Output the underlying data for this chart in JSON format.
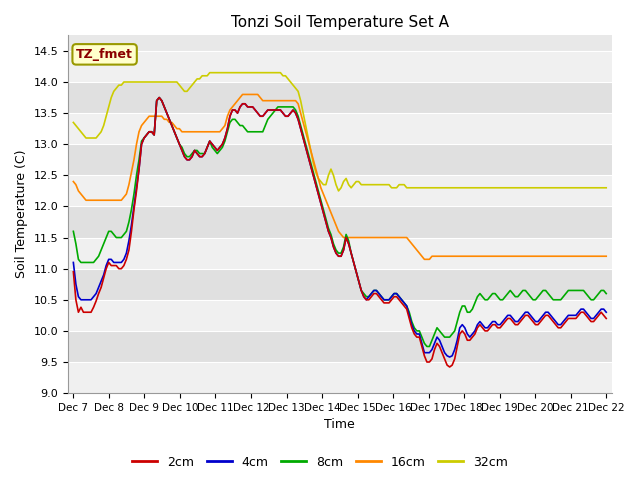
{
  "title": "Tonzi Soil Temperature Set A",
  "xlabel": "Time",
  "ylabel": "Soil Temperature (C)",
  "ylim": [
    9.0,
    14.75
  ],
  "yticks": [
    9.0,
    9.5,
    10.0,
    10.5,
    11.0,
    11.5,
    12.0,
    12.5,
    13.0,
    13.5,
    14.0,
    14.5
  ],
  "x_labels": [
    "Dec 7",
    "Dec 8",
    "Dec 9",
    "Dec 10",
    "Dec 11",
    "Dec 12",
    "Dec 13",
    "Dec 14",
    "Dec 15",
    "Dec 16",
    "Dec 17",
    "Dec 18",
    "Dec 19",
    "Dec 20",
    "Dec 21",
    "Dec 22"
  ],
  "colors": {
    "2cm": "#cc0000",
    "4cm": "#0000cc",
    "8cm": "#00aa00",
    "16cm": "#ff8800",
    "32cm": "#cccc00"
  },
  "bg_light": "#f0f0f0",
  "bg_dark": "#e0e0e0",
  "series": {
    "2cm": [
      10.95,
      10.5,
      10.3,
      10.38,
      10.3,
      10.3,
      10.3,
      10.3,
      10.38,
      10.48,
      10.6,
      10.7,
      10.85,
      11.0,
      11.1,
      11.05,
      11.05,
      11.05,
      11.0,
      11.0,
      11.05,
      11.15,
      11.3,
      11.6,
      11.95,
      12.25,
      12.6,
      13.0,
      13.1,
      13.15,
      13.2,
      13.2,
      13.15,
      13.7,
      13.75,
      13.7,
      13.6,
      13.5,
      13.4,
      13.3,
      13.2,
      13.1,
      13.0,
      12.9,
      12.8,
      12.75,
      12.75,
      12.8,
      12.9,
      12.85,
      12.8,
      12.8,
      12.85,
      12.95,
      13.05,
      13.0,
      12.95,
      12.9,
      12.95,
      13.0,
      13.1,
      13.25,
      13.45,
      13.55,
      13.55,
      13.5,
      13.6,
      13.65,
      13.65,
      13.6,
      13.6,
      13.6,
      13.55,
      13.5,
      13.45,
      13.45,
      13.5,
      13.55,
      13.55,
      13.55,
      13.55,
      13.55,
      13.55,
      13.5,
      13.45,
      13.45,
      13.5,
      13.55,
      13.5,
      13.4,
      13.25,
      13.1,
      12.95,
      12.8,
      12.65,
      12.5,
      12.35,
      12.2,
      12.05,
      11.9,
      11.75,
      11.6,
      11.5,
      11.35,
      11.25,
      11.2,
      11.2,
      11.3,
      11.5,
      11.4,
      11.25,
      11.1,
      10.95,
      10.8,
      10.65,
      10.55,
      10.5,
      10.5,
      10.55,
      10.6,
      10.6,
      10.55,
      10.5,
      10.45,
      10.45,
      10.45,
      10.5,
      10.55,
      10.55,
      10.5,
      10.45,
      10.4,
      10.35,
      10.2,
      10.05,
      9.95,
      9.9,
      9.9,
      9.75,
      9.6,
      9.5,
      9.5,
      9.55,
      9.7,
      9.8,
      9.75,
      9.65,
      9.55,
      9.45,
      9.42,
      9.45,
      9.55,
      9.75,
      9.95,
      10.0,
      9.95,
      9.85,
      9.85,
      9.9,
      9.95,
      10.05,
      10.1,
      10.05,
      10.0,
      10.0,
      10.05,
      10.1,
      10.1,
      10.05,
      10.05,
      10.1,
      10.15,
      10.2,
      10.2,
      10.15,
      10.1,
      10.1,
      10.15,
      10.2,
      10.25,
      10.25,
      10.2,
      10.15,
      10.1,
      10.1,
      10.15,
      10.2,
      10.25,
      10.25,
      10.2,
      10.15,
      10.1,
      10.05,
      10.05,
      10.1,
      10.15,
      10.2,
      10.2,
      10.2,
      10.2,
      10.25,
      10.3,
      10.3,
      10.25,
      10.2,
      10.15,
      10.15,
      10.2,
      10.25,
      10.3,
      10.25,
      10.2
    ],
    "4cm": [
      11.1,
      10.75,
      10.55,
      10.5,
      10.5,
      10.5,
      10.5,
      10.5,
      10.55,
      10.6,
      10.7,
      10.8,
      10.9,
      11.05,
      11.15,
      11.15,
      11.1,
      11.1,
      11.1,
      11.1,
      11.15,
      11.25,
      11.45,
      11.7,
      12.0,
      12.3,
      12.6,
      13.0,
      13.1,
      13.15,
      13.2,
      13.2,
      13.15,
      13.7,
      13.75,
      13.7,
      13.6,
      13.5,
      13.4,
      13.3,
      13.2,
      13.1,
      13.0,
      12.9,
      12.8,
      12.75,
      12.75,
      12.8,
      12.9,
      12.85,
      12.8,
      12.8,
      12.85,
      12.95,
      13.05,
      13.0,
      12.95,
      12.9,
      12.95,
      13.0,
      13.1,
      13.25,
      13.45,
      13.55,
      13.55,
      13.5,
      13.6,
      13.65,
      13.65,
      13.6,
      13.6,
      13.6,
      13.55,
      13.5,
      13.45,
      13.45,
      13.5,
      13.55,
      13.55,
      13.55,
      13.55,
      13.55,
      13.55,
      13.5,
      13.45,
      13.45,
      13.5,
      13.55,
      13.5,
      13.4,
      13.25,
      13.1,
      12.95,
      12.8,
      12.65,
      12.5,
      12.35,
      12.2,
      12.05,
      11.9,
      11.75,
      11.6,
      11.5,
      11.35,
      11.25,
      11.2,
      11.2,
      11.3,
      11.5,
      11.4,
      11.25,
      11.1,
      10.95,
      10.8,
      10.65,
      10.55,
      10.5,
      10.55,
      10.6,
      10.65,
      10.65,
      10.6,
      10.55,
      10.5,
      10.5,
      10.5,
      10.55,
      10.6,
      10.6,
      10.55,
      10.5,
      10.45,
      10.4,
      10.25,
      10.1,
      10.0,
      9.95,
      9.95,
      9.8,
      9.65,
      9.65,
      9.65,
      9.7,
      9.8,
      9.9,
      9.85,
      9.75,
      9.65,
      9.6,
      9.58,
      9.6,
      9.7,
      9.85,
      10.05,
      10.1,
      10.05,
      9.95,
      9.9,
      9.95,
      10.0,
      10.1,
      10.15,
      10.1,
      10.05,
      10.05,
      10.1,
      10.15,
      10.15,
      10.1,
      10.1,
      10.15,
      10.2,
      10.25,
      10.25,
      10.2,
      10.15,
      10.15,
      10.2,
      10.25,
      10.3,
      10.3,
      10.25,
      10.2,
      10.15,
      10.15,
      10.2,
      10.25,
      10.3,
      10.3,
      10.25,
      10.2,
      10.15,
      10.1,
      10.1,
      10.15,
      10.2,
      10.25,
      10.25,
      10.25,
      10.25,
      10.3,
      10.35,
      10.35,
      10.3,
      10.25,
      10.2,
      10.2,
      10.25,
      10.3,
      10.35,
      10.35,
      10.3
    ],
    "8cm": [
      11.6,
      11.4,
      11.15,
      11.1,
      11.1,
      11.1,
      11.1,
      11.1,
      11.1,
      11.15,
      11.2,
      11.3,
      11.4,
      11.5,
      11.6,
      11.6,
      11.55,
      11.5,
      11.5,
      11.5,
      11.55,
      11.6,
      11.75,
      11.95,
      12.2,
      12.5,
      12.75,
      13.05,
      13.1,
      13.15,
      13.2,
      13.2,
      13.15,
      13.7,
      13.75,
      13.7,
      13.6,
      13.5,
      13.4,
      13.3,
      13.2,
      13.1,
      13.0,
      12.95,
      12.85,
      12.8,
      12.8,
      12.85,
      12.9,
      12.9,
      12.85,
      12.85,
      12.85,
      12.95,
      13.05,
      12.95,
      12.9,
      12.85,
      12.9,
      12.95,
      13.05,
      13.2,
      13.35,
      13.4,
      13.4,
      13.35,
      13.3,
      13.3,
      13.25,
      13.2,
      13.2,
      13.2,
      13.2,
      13.2,
      13.2,
      13.2,
      13.3,
      13.4,
      13.45,
      13.5,
      13.55,
      13.6,
      13.6,
      13.6,
      13.6,
      13.6,
      13.6,
      13.6,
      13.55,
      13.45,
      13.3,
      13.15,
      13.0,
      12.85,
      12.7,
      12.55,
      12.4,
      12.25,
      12.1,
      11.95,
      11.8,
      11.65,
      11.55,
      11.4,
      11.3,
      11.25,
      11.25,
      11.35,
      11.55,
      11.45,
      11.25,
      11.1,
      10.95,
      10.8,
      10.65,
      10.6,
      10.55,
      10.55,
      10.6,
      10.65,
      10.65,
      10.6,
      10.55,
      10.5,
      10.5,
      10.5,
      10.55,
      10.6,
      10.6,
      10.55,
      10.5,
      10.45,
      10.4,
      10.3,
      10.15,
      10.05,
      10.0,
      10.0,
      9.9,
      9.8,
      9.75,
      9.75,
      9.85,
      9.95,
      10.05,
      10.0,
      9.95,
      9.9,
      9.9,
      9.9,
      9.95,
      10.0,
      10.15,
      10.3,
      10.4,
      10.4,
      10.3,
      10.3,
      10.35,
      10.45,
      10.55,
      10.6,
      10.55,
      10.5,
      10.5,
      10.55,
      10.6,
      10.6,
      10.55,
      10.5,
      10.5,
      10.55,
      10.6,
      10.65,
      10.6,
      10.55,
      10.55,
      10.6,
      10.65,
      10.65,
      10.6,
      10.55,
      10.5,
      10.5,
      10.55,
      10.6,
      10.65,
      10.65,
      10.6,
      10.55,
      10.5,
      10.5,
      10.5,
      10.5,
      10.55,
      10.6,
      10.65,
      10.65,
      10.65,
      10.65,
      10.65,
      10.65,
      10.65,
      10.6,
      10.55,
      10.5,
      10.5,
      10.55,
      10.6,
      10.65,
      10.65,
      10.6
    ],
    "16cm": [
      12.4,
      12.35,
      12.25,
      12.2,
      12.15,
      12.1,
      12.1,
      12.1,
      12.1,
      12.1,
      12.1,
      12.1,
      12.1,
      12.1,
      12.1,
      12.1,
      12.1,
      12.1,
      12.1,
      12.1,
      12.15,
      12.2,
      12.35,
      12.55,
      12.75,
      13.0,
      13.2,
      13.3,
      13.35,
      13.4,
      13.45,
      13.45,
      13.45,
      13.45,
      13.45,
      13.45,
      13.4,
      13.4,
      13.35,
      13.35,
      13.3,
      13.25,
      13.25,
      13.2,
      13.2,
      13.2,
      13.2,
      13.2,
      13.2,
      13.2,
      13.2,
      13.2,
      13.2,
      13.2,
      13.2,
      13.2,
      13.2,
      13.2,
      13.2,
      13.25,
      13.3,
      13.45,
      13.55,
      13.6,
      13.65,
      13.7,
      13.75,
      13.8,
      13.8,
      13.8,
      13.8,
      13.8,
      13.8,
      13.8,
      13.75,
      13.7,
      13.7,
      13.7,
      13.7,
      13.7,
      13.7,
      13.7,
      13.7,
      13.7,
      13.7,
      13.7,
      13.7,
      13.7,
      13.7,
      13.65,
      13.5,
      13.35,
      13.2,
      13.05,
      12.9,
      12.75,
      12.6,
      12.45,
      12.3,
      12.2,
      12.1,
      12.0,
      11.9,
      11.8,
      11.7,
      11.6,
      11.55,
      11.5,
      11.5,
      11.5,
      11.5,
      11.5,
      11.5,
      11.5,
      11.5,
      11.5,
      11.5,
      11.5,
      11.5,
      11.5,
      11.5,
      11.5,
      11.5,
      11.5,
      11.5,
      11.5,
      11.5,
      11.5,
      11.5,
      11.5,
      11.5,
      11.5,
      11.5,
      11.45,
      11.4,
      11.35,
      11.3,
      11.25,
      11.2,
      11.15,
      11.15,
      11.15,
      11.2,
      11.2,
      11.2,
      11.2,
      11.2,
      11.2,
      11.2,
      11.2,
      11.2,
      11.2,
      11.2,
      11.2,
      11.2,
      11.2,
      11.2,
      11.2,
      11.2,
      11.2,
      11.2,
      11.2,
      11.2,
      11.2,
      11.2,
      11.2,
      11.2,
      11.2,
      11.2,
      11.2,
      11.2,
      11.2,
      11.2,
      11.2,
      11.2,
      11.2,
      11.2,
      11.2,
      11.2,
      11.2,
      11.2,
      11.2,
      11.2,
      11.2,
      11.2,
      11.2,
      11.2,
      11.2,
      11.2,
      11.2,
      11.2,
      11.2,
      11.2,
      11.2,
      11.2,
      11.2,
      11.2,
      11.2,
      11.2,
      11.2,
      11.2,
      11.2,
      11.2,
      11.2,
      11.2,
      11.2,
      11.2,
      11.2,
      11.2,
      11.2,
      11.2,
      11.2
    ],
    "32cm": [
      13.35,
      13.3,
      13.25,
      13.2,
      13.15,
      13.1,
      13.1,
      13.1,
      13.1,
      13.1,
      13.15,
      13.2,
      13.3,
      13.45,
      13.6,
      13.75,
      13.85,
      13.9,
      13.95,
      13.95,
      14.0,
      14.0,
      14.0,
      14.0,
      14.0,
      14.0,
      14.0,
      14.0,
      14.0,
      14.0,
      14.0,
      14.0,
      14.0,
      14.0,
      14.0,
      14.0,
      14.0,
      14.0,
      14.0,
      14.0,
      14.0,
      14.0,
      13.95,
      13.9,
      13.85,
      13.85,
      13.9,
      13.95,
      14.0,
      14.05,
      14.05,
      14.1,
      14.1,
      14.1,
      14.15,
      14.15,
      14.15,
      14.15,
      14.15,
      14.15,
      14.15,
      14.15,
      14.15,
      14.15,
      14.15,
      14.15,
      14.15,
      14.15,
      14.15,
      14.15,
      14.15,
      14.15,
      14.15,
      14.15,
      14.15,
      14.15,
      14.15,
      14.15,
      14.15,
      14.15,
      14.15,
      14.15,
      14.15,
      14.1,
      14.1,
      14.05,
      14.0,
      13.95,
      13.9,
      13.85,
      13.7,
      13.5,
      13.3,
      13.1,
      12.9,
      12.7,
      12.55,
      12.45,
      12.4,
      12.35,
      12.35,
      12.5,
      12.6,
      12.5,
      12.35,
      12.25,
      12.3,
      12.4,
      12.45,
      12.35,
      12.3,
      12.35,
      12.4,
      12.4,
      12.35,
      12.35,
      12.35,
      12.35,
      12.35,
      12.35,
      12.35,
      12.35,
      12.35,
      12.35,
      12.35,
      12.35,
      12.3,
      12.3,
      12.3,
      12.35,
      12.35,
      12.35,
      12.3,
      12.3,
      12.3,
      12.3,
      12.3,
      12.3,
      12.3,
      12.3,
      12.3,
      12.3,
      12.3,
      12.3,
      12.3,
      12.3,
      12.3,
      12.3,
      12.3,
      12.3,
      12.3,
      12.3,
      12.3,
      12.3,
      12.3,
      12.3,
      12.3,
      12.3,
      12.3,
      12.3,
      12.3,
      12.3,
      12.3,
      12.3,
      12.3,
      12.3,
      12.3,
      12.3,
      12.3,
      12.3,
      12.3,
      12.3,
      12.3,
      12.3,
      12.3,
      12.3,
      12.3,
      12.3,
      12.3,
      12.3,
      12.3,
      12.3,
      12.3,
      12.3,
      12.3,
      12.3,
      12.3,
      12.3,
      12.3,
      12.3,
      12.3,
      12.3,
      12.3,
      12.3,
      12.3,
      12.3,
      12.3,
      12.3,
      12.3,
      12.3,
      12.3,
      12.3,
      12.3,
      12.3,
      12.3,
      12.3,
      12.3,
      12.3,
      12.3,
      12.3,
      12.3,
      12.3
    ]
  }
}
